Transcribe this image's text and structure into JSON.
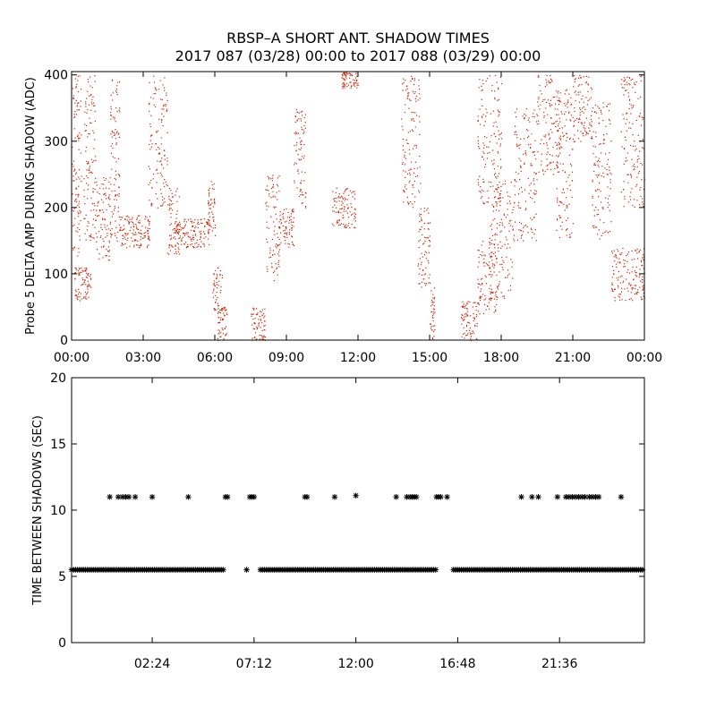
{
  "title_line1": "RBSP–A SHORT ANT. SHADOW TIMES",
  "title_line2": "2017 087 (03/28) 00:00 to 2017 088 (03/29) 00:00",
  "colors": {
    "red_points": "#cc2200",
    "axes": "#000000",
    "background": "#ffffff"
  },
  "chart_data": [
    {
      "type": "scatter",
      "title": "",
      "xlabel": "",
      "ylabel": "Probe 5 DELTA AMP DURING SHADOW (ADC)",
      "xlim": [
        0,
        24
      ],
      "ylim": [
        0,
        405
      ],
      "x_unit": "hours",
      "xtick_values": [
        0,
        3,
        6,
        9,
        12,
        15,
        18,
        21,
        24
      ],
      "xtick_labels": [
        "00:00",
        "03:00",
        "06:00",
        "09:00",
        "12:00",
        "15:00",
        "18:00",
        "21:00",
        "00:00"
      ],
      "ytick_values": [
        0,
        100,
        200,
        300,
        400
      ],
      "ytick_labels": [
        "0",
        "100",
        "200",
        "300",
        "400"
      ],
      "point_color": "#cc2200",
      "clusters": [
        {
          "x": [
            0.0,
            0.4
          ],
          "y": [
            100,
            400
          ]
        },
        {
          "x": [
            0.1,
            0.8
          ],
          "y": [
            60,
            110
          ]
        },
        {
          "x": [
            0.5,
            1.0
          ],
          "y": [
            150,
            400
          ]
        },
        {
          "x": [
            1.0,
            1.6
          ],
          "y": [
            120,
            250
          ]
        },
        {
          "x": [
            1.6,
            2.0
          ],
          "y": [
            150,
            400
          ]
        },
        {
          "x": [
            2.0,
            3.3
          ],
          "y": [
            140,
            190
          ]
        },
        {
          "x": [
            3.2,
            4.0
          ],
          "y": [
            200,
            400
          ]
        },
        {
          "x": [
            4.0,
            4.5
          ],
          "y": [
            130,
            230
          ]
        },
        {
          "x": [
            4.3,
            5.8
          ],
          "y": [
            140,
            185
          ]
        },
        {
          "x": [
            5.7,
            6.0
          ],
          "y": [
            150,
            240
          ]
        },
        {
          "x": [
            5.9,
            6.3
          ],
          "y": [
            40,
            110
          ]
        },
        {
          "x": [
            6.1,
            6.5
          ],
          "y": [
            0,
            50
          ]
        },
        {
          "x": [
            7.5,
            8.1
          ],
          "y": [
            0,
            50
          ]
        },
        {
          "x": [
            8.1,
            8.7
          ],
          "y": [
            90,
            250
          ]
        },
        {
          "x": [
            8.7,
            9.3
          ],
          "y": [
            140,
            200
          ]
        },
        {
          "x": [
            9.3,
            9.8
          ],
          "y": [
            200,
            350
          ]
        },
        {
          "x": [
            10.9,
            11.9
          ],
          "y": [
            170,
            230
          ]
        },
        {
          "x": [
            11.3,
            12.0
          ],
          "y": [
            380,
            405
          ]
        },
        {
          "x": [
            13.8,
            14.6
          ],
          "y": [
            200,
            400
          ]
        },
        {
          "x": [
            14.5,
            15.0
          ],
          "y": [
            80,
            200
          ]
        },
        {
          "x": [
            15.0,
            15.2
          ],
          "y": [
            0,
            80
          ]
        },
        {
          "x": [
            16.3,
            17.0
          ],
          "y": [
            0,
            60
          ]
        },
        {
          "x": [
            17.0,
            17.8
          ],
          "y": [
            40,
            150
          ]
        },
        {
          "x": [
            17.0,
            18.0
          ],
          "y": [
            200,
            400
          ]
        },
        {
          "x": [
            17.5,
            18.5
          ],
          "y": [
            60,
            250
          ]
        },
        {
          "x": [
            18.5,
            19.5
          ],
          "y": [
            150,
            350
          ]
        },
        {
          "x": [
            19.5,
            20.5
          ],
          "y": [
            250,
            400
          ]
        },
        {
          "x": [
            20.3,
            21.0
          ],
          "y": [
            150,
            380
          ]
        },
        {
          "x": [
            21.0,
            21.8
          ],
          "y": [
            300,
            400
          ]
        },
        {
          "x": [
            21.8,
            22.6
          ],
          "y": [
            150,
            360
          ]
        },
        {
          "x": [
            22.6,
            24.0
          ],
          "y": [
            60,
            140
          ]
        },
        {
          "x": [
            23.0,
            24.0
          ],
          "y": [
            200,
            400
          ]
        }
      ]
    },
    {
      "type": "scatter",
      "title": "",
      "xlabel": "",
      "ylabel": "TIME BETWEEN SHADOWS (SEC)",
      "xlim": [
        -1.4,
        25.6
      ],
      "ylim": [
        0,
        20
      ],
      "x_unit": "hours",
      "xtick_values": [
        2.4,
        7.2,
        12.0,
        16.8,
        21.6
      ],
      "xtick_labels": [
        "02:24",
        "07:12",
        "12:00",
        "16:48",
        "21:36"
      ],
      "ytick_values": [
        0,
        5,
        10,
        15,
        20
      ],
      "ytick_labels": [
        "0",
        "5",
        "10",
        "15",
        "20"
      ],
      "marker": "asterisk",
      "point_color": "#000000",
      "series": [
        {
          "description": "baseline",
          "y": 5.5,
          "segments": [
            [
              -1.4,
              5.8
            ],
            [
              7.5,
              15.8
            ],
            [
              16.6,
              25.6
            ]
          ]
        }
      ],
      "isolated_points": [
        {
          "x": 6.85,
          "y": 5.5
        },
        {
          "x": 0.4,
          "y": 11.0
        },
        {
          "x": 0.8,
          "y": 11.0
        },
        {
          "x": 1.0,
          "y": 11.0
        },
        {
          "x": 1.15,
          "y": 11.0
        },
        {
          "x": 1.3,
          "y": 11.0
        },
        {
          "x": 1.6,
          "y": 11.0
        },
        {
          "x": 2.4,
          "y": 11.0
        },
        {
          "x": 4.1,
          "y": 11.0
        },
        {
          "x": 5.85,
          "y": 11.0
        },
        {
          "x": 5.95,
          "y": 11.0
        },
        {
          "x": 7.0,
          "y": 11.0
        },
        {
          "x": 7.1,
          "y": 11.0
        },
        {
          "x": 7.2,
          "y": 11.0
        },
        {
          "x": 9.6,
          "y": 11.0
        },
        {
          "x": 9.7,
          "y": 11.0
        },
        {
          "x": 11.0,
          "y": 11.0
        },
        {
          "x": 12.0,
          "y": 11.1
        },
        {
          "x": 13.9,
          "y": 11.0
        },
        {
          "x": 14.4,
          "y": 11.0
        },
        {
          "x": 14.55,
          "y": 11.0
        },
        {
          "x": 14.65,
          "y": 11.0
        },
        {
          "x": 14.75,
          "y": 11.0
        },
        {
          "x": 14.85,
          "y": 11.0
        },
        {
          "x": 15.8,
          "y": 11.0
        },
        {
          "x": 15.9,
          "y": 11.0
        },
        {
          "x": 16.0,
          "y": 11.0
        },
        {
          "x": 16.3,
          "y": 11.0
        },
        {
          "x": 19.8,
          "y": 11.0
        },
        {
          "x": 20.3,
          "y": 11.0
        },
        {
          "x": 20.6,
          "y": 11.0
        },
        {
          "x": 21.5,
          "y": 11.0
        },
        {
          "x": 21.9,
          "y": 11.0
        },
        {
          "x": 22.05,
          "y": 11.0
        },
        {
          "x": 22.2,
          "y": 11.0
        },
        {
          "x": 22.35,
          "y": 11.0
        },
        {
          "x": 22.5,
          "y": 11.0
        },
        {
          "x": 22.65,
          "y": 11.0
        },
        {
          "x": 22.8,
          "y": 11.0
        },
        {
          "x": 23.0,
          "y": 11.0
        },
        {
          "x": 23.15,
          "y": 11.0
        },
        {
          "x": 23.3,
          "y": 11.0
        },
        {
          "x": 23.45,
          "y": 11.0
        },
        {
          "x": 24.5,
          "y": 11.0
        }
      ]
    }
  ]
}
